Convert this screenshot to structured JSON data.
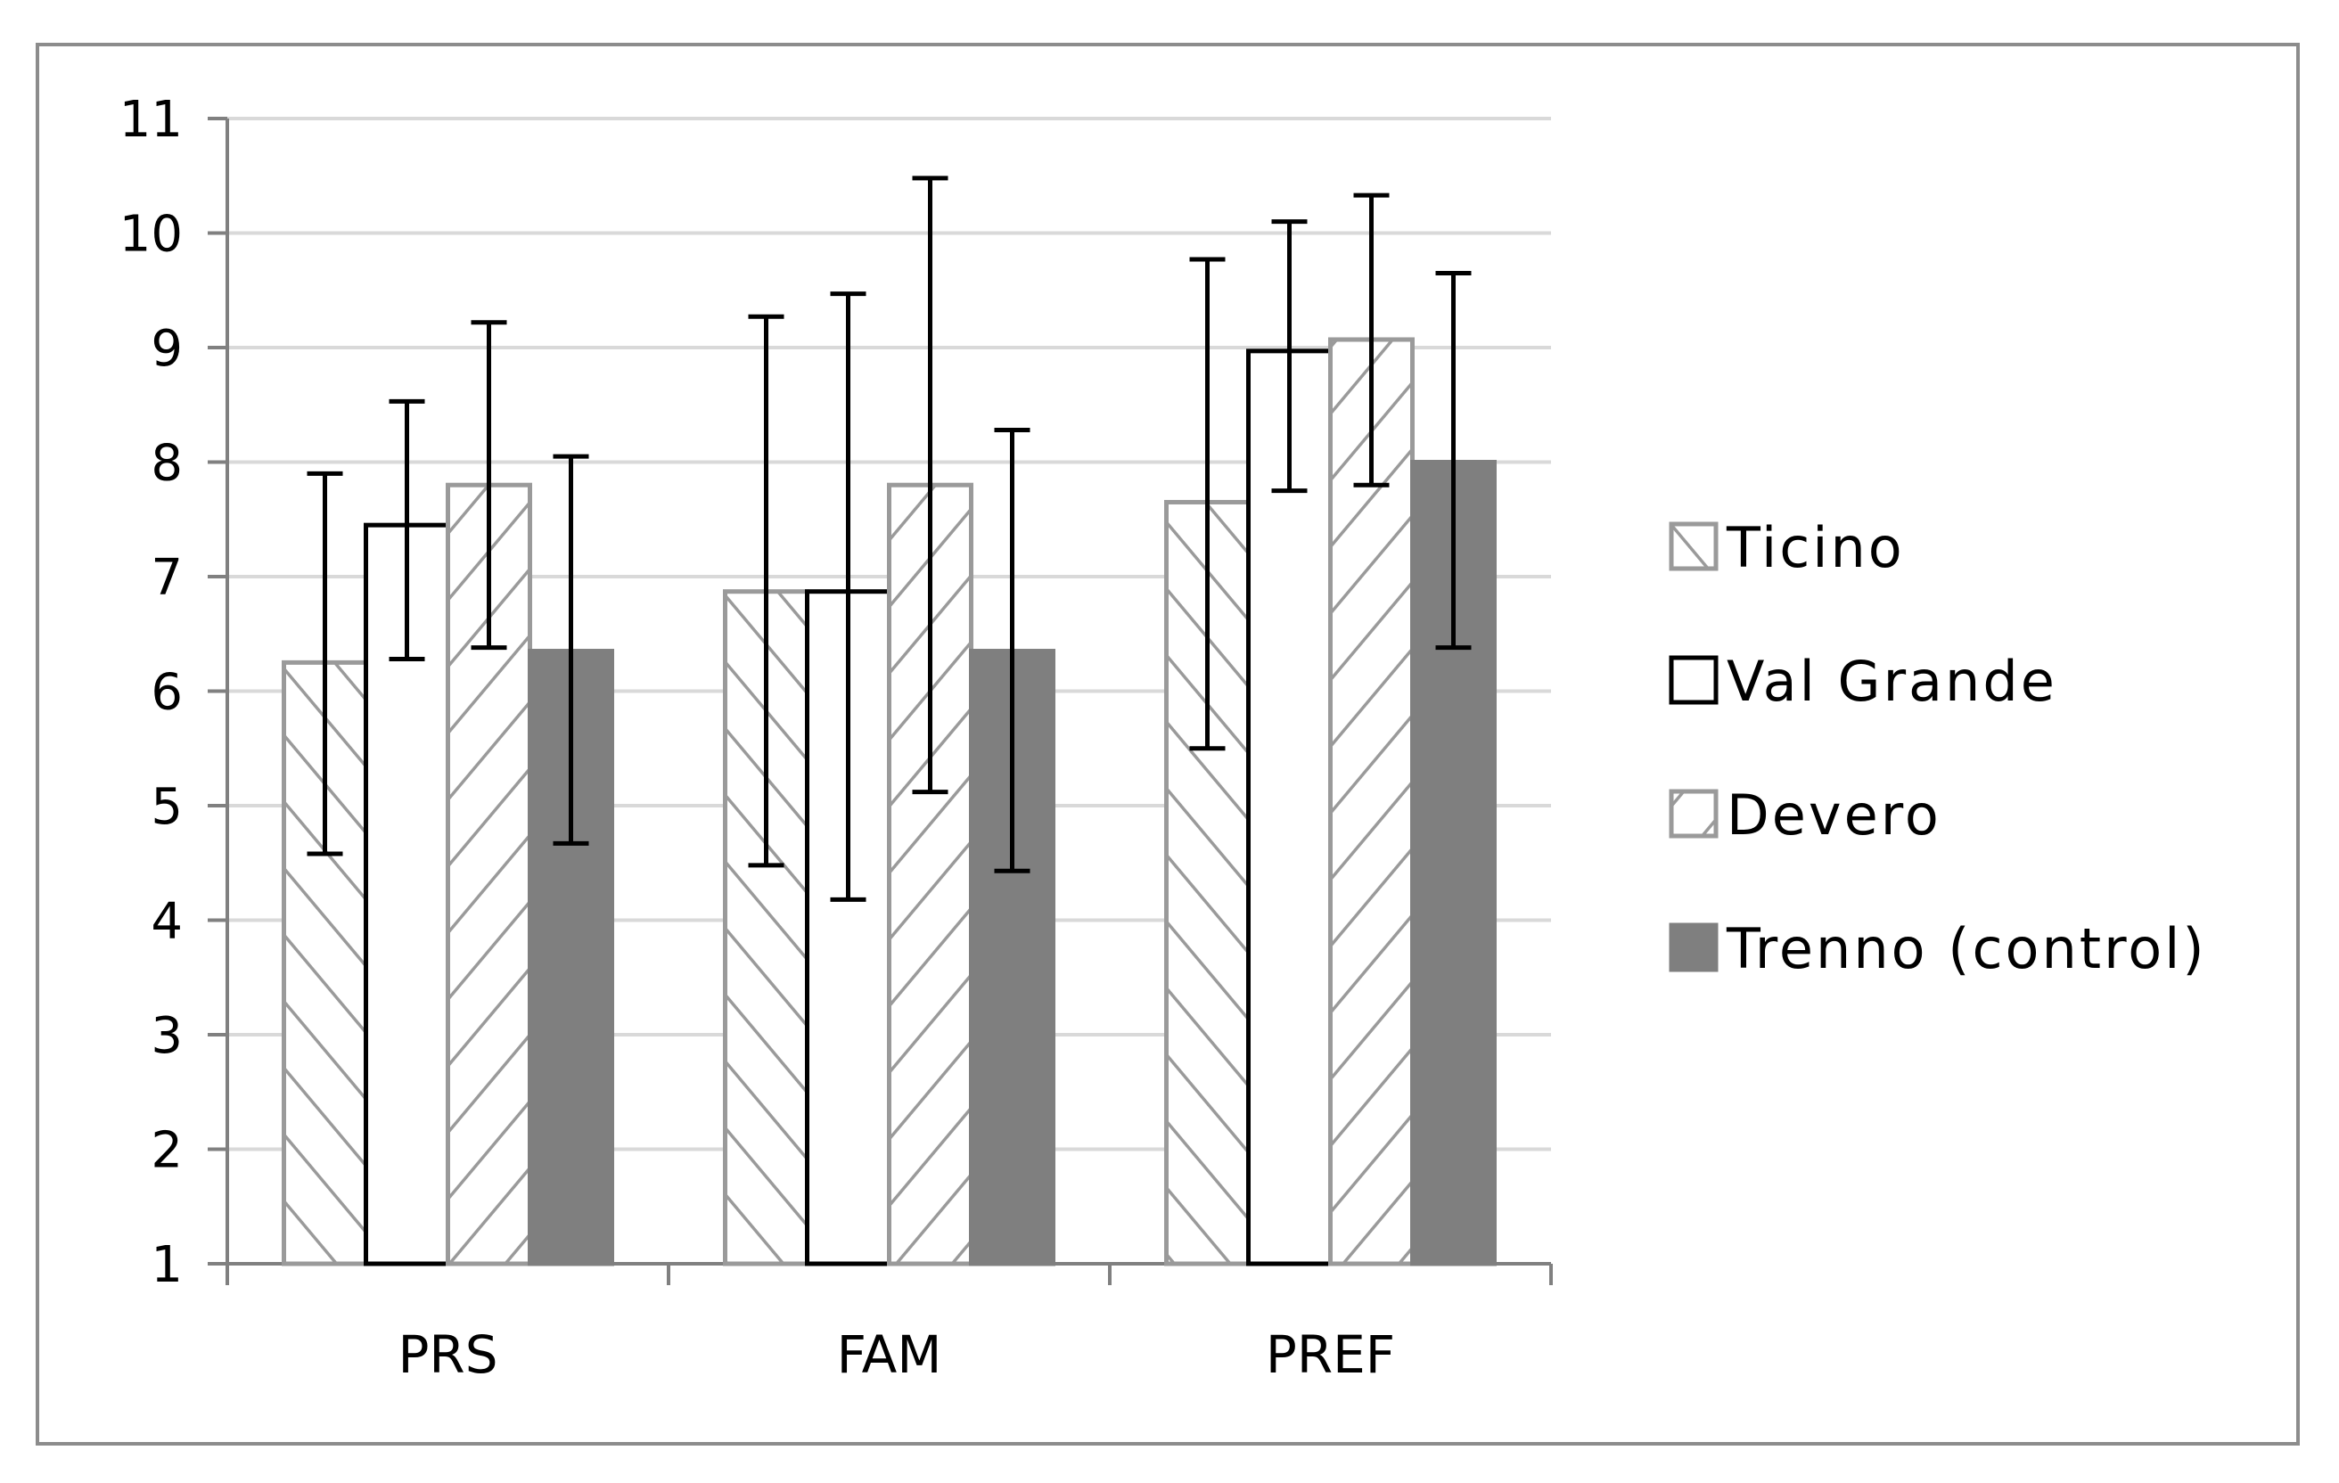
{
  "chart_data": {
    "type": "bar",
    "title": "",
    "xlabel": "",
    "ylabel": "",
    "ylim": [
      1,
      11
    ],
    "yticks": [
      "1",
      "2",
      "3",
      "4",
      "5",
      "6",
      "7",
      "8",
      "9",
      "10",
      "11"
    ],
    "grid": true,
    "legend_position": "right",
    "categories": [
      "PRS",
      "FAM",
      "PREF"
    ],
    "series": [
      {
        "name": "Ticino",
        "pattern": "hatch-forward",
        "values": [
          6.25,
          6.87,
          7.65
        ],
        "error_low": [
          4.58,
          4.48,
          5.5
        ],
        "error_high": [
          7.9,
          9.27,
          9.77
        ]
      },
      {
        "name": "Val Grande",
        "pattern": "open",
        "values": [
          7.45,
          6.87,
          8.97
        ],
        "error_low": [
          6.28,
          4.18,
          7.75
        ],
        "error_high": [
          8.53,
          9.47,
          10.1
        ]
      },
      {
        "name": "Devero",
        "pattern": "hatch-backward",
        "values": [
          7.8,
          7.8,
          9.07
        ],
        "error_low": [
          6.38,
          5.12,
          7.8
        ],
        "error_high": [
          9.22,
          10.48,
          10.33
        ]
      },
      {
        "name": "Trenno (control)",
        "pattern": "solid",
        "values": [
          6.35,
          6.35,
          8.0
        ],
        "error_low": [
          4.67,
          4.43,
          6.38
        ],
        "error_high": [
          8.05,
          8.28,
          9.65
        ]
      }
    ],
    "colors": {
      "hatch_stroke": "#9a9a9a",
      "solid_fill": "#7f7f7f",
      "grid": "#d9d9d9",
      "axis": "#808080",
      "error_bar": "#000000"
    }
  }
}
